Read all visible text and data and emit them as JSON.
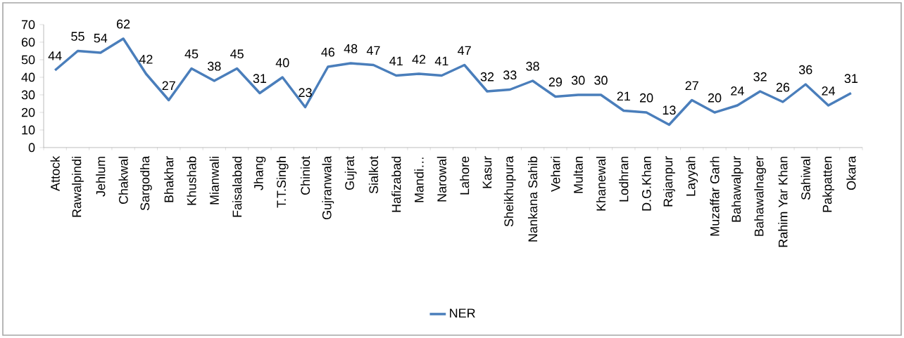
{
  "chart_data": {
    "type": "line",
    "categories": [
      "Attock",
      "Rawalpindi",
      "Jehlum",
      "Chakwal",
      "Sargodha",
      "Bhakhar",
      "Khushab",
      "Mianwali",
      "Faisalabad",
      "Jhang",
      "T.T.Singh",
      "Chiniot",
      "Gujranwala",
      "Gujrat",
      "Sialkot",
      "Hafizabad",
      "Mandi…",
      "Narowal",
      "Lahore",
      "Kasur",
      "Sheikhupura",
      "Nankana Sahib",
      "Vehari",
      "Multan",
      "Khanewal",
      "Lodhran",
      "D.G.Khan",
      "Rajanpur",
      "Layyah",
      "Muzaffar Garh",
      "Bahawalpur",
      "Bahawalnager",
      "Rahim Yar Khan",
      "Sahiwal",
      "Pakpatten",
      "Okara"
    ],
    "series": [
      {
        "name": "NER",
        "color": "#4a7ebb",
        "values": [
          44,
          55,
          54,
          62,
          42,
          27,
          45,
          38,
          45,
          31,
          40,
          23,
          46,
          48,
          47,
          41,
          42,
          41,
          47,
          32,
          33,
          38,
          29,
          30,
          30,
          21,
          20,
          13,
          27,
          20,
          24,
          32,
          26,
          36,
          24,
          31
        ]
      }
    ],
    "ylim": [
      0,
      70
    ],
    "yticks": [
      0,
      10,
      20,
      30,
      40,
      50,
      60,
      70
    ],
    "data_labels": true,
    "grid": false,
    "legend": "bottom",
    "marker": "none",
    "line_style": "solid"
  }
}
